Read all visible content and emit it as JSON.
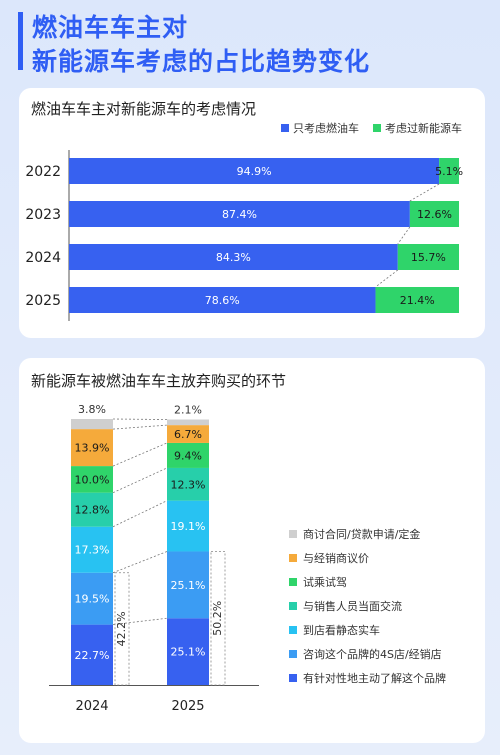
{
  "page": {
    "title_line1": "燃油车车主对",
    "title_line2": "新能源车考虑的占比趋势变化"
  },
  "chart_data": [
    {
      "type": "bar",
      "orientation": "horizontal",
      "stacked": true,
      "percent": true,
      "title": "燃油车车主对新能源车的考虑情况",
      "categories": [
        "2022",
        "2023",
        "2024",
        "2025"
      ],
      "series": [
        {
          "name": "只考虑燃油车",
          "color": "#3761f0",
          "values": [
            94.9,
            87.4,
            84.3,
            78.6
          ],
          "labels": [
            "94.9%",
            "87.4%",
            "84.3%",
            "78.6%"
          ]
        },
        {
          "name": "考虑过新能源车",
          "color": "#2fd46a",
          "values": [
            5.1,
            12.6,
            15.7,
            21.4
          ],
          "labels": [
            "5.1%",
            "12.6%",
            "15.7%",
            "21.4%"
          ]
        }
      ],
      "xlim": [
        0,
        100
      ],
      "legend": "top-right",
      "grid": false
    },
    {
      "type": "bar",
      "orientation": "vertical",
      "stacked": true,
      "percent": true,
      "title": "新能源车被燃油车车主放弃购买的环节",
      "categories": [
        "2024",
        "2025"
      ],
      "series": [
        {
          "name": "有针对性地主动了解这个品牌",
          "color": "#3761f0",
          "values": [
            22.7,
            25.1
          ],
          "labels": [
            "22.7%",
            "25.1%"
          ]
        },
        {
          "name": "咨询这个品牌的4S店/经销店",
          "color": "#3b9cf3",
          "values": [
            19.5,
            25.1
          ],
          "labels": [
            "19.5%",
            "25.1%"
          ]
        },
        {
          "name": "到店看静态实车",
          "color": "#28c2f2",
          "values": [
            17.3,
            19.1
          ],
          "labels": [
            "17.3%",
            "19.1%"
          ]
        },
        {
          "name": "与销售人员当面交流",
          "color": "#27cfaa",
          "values": [
            12.8,
            12.3
          ],
          "labels": [
            "12.8%",
            "12.3%"
          ]
        },
        {
          "name": "试乘试驾",
          "color": "#2fd46a",
          "values": [
            10.0,
            9.4
          ],
          "labels": [
            "10.0%",
            "9.4%"
          ]
        },
        {
          "name": "与经销商议价",
          "color": "#f5aa3b",
          "values": [
            13.9,
            6.7
          ],
          "labels": [
            "13.9%",
            "6.7%"
          ]
        },
        {
          "name": "商讨合同/贷款申请/定金",
          "color": "#cfcfcf",
          "values": [
            3.8,
            2.1
          ],
          "labels": [
            "3.8%",
            "2.1%"
          ]
        }
      ],
      "annotations": [
        {
          "category": "2024",
          "sum_of": [
            "有针对性地主动了解这个品牌",
            "咨询这个品牌的4S店/经销店"
          ],
          "label": "42.2%"
        },
        {
          "category": "2025",
          "sum_of": [
            "有针对性地主动了解这个品牌",
            "咨询这个品牌的4S店/经销店"
          ],
          "label": "50.2%"
        }
      ],
      "ylim": [
        0,
        100
      ],
      "legend": "right",
      "grid": false
    }
  ]
}
